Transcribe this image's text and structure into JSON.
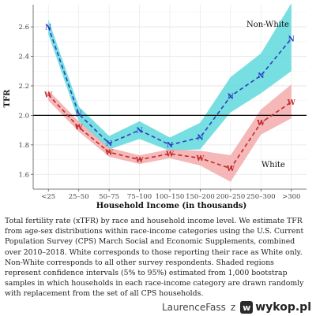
{
  "chart_data": {
    "type": "line",
    "xlabel": "Household Income (in thousands)",
    "ylabel": "TFR",
    "categories": [
      "<25",
      "25–50",
      "50–75",
      "75–100",
      "100–150",
      "150–200",
      "200–250",
      "250–300",
      ">300"
    ],
    "ylim": [
      1.5,
      2.75
    ],
    "yticks": [
      1.6,
      1.8,
      2.0,
      2.2,
      2.4,
      2.6
    ],
    "ytick_labels": [
      "1.6",
      "1.8",
      "2.0",
      "2.2",
      "2.4",
      "2.6"
    ],
    "reference_line": 2.0,
    "grid": true,
    "series": [
      {
        "name": "Non-White",
        "marker": "N",
        "color": "#2b3fbf",
        "band_color": "#5fd9dc",
        "values": [
          2.6,
          2.01,
          1.81,
          1.9,
          1.8,
          1.85,
          2.13,
          2.27,
          2.52
        ],
        "lower": [
          2.55,
          1.96,
          1.77,
          1.84,
          1.76,
          1.77,
          2.02,
          2.15,
          2.3
        ],
        "upper": [
          2.65,
          2.06,
          1.86,
          1.96,
          1.85,
          1.95,
          2.26,
          2.42,
          2.76
        ]
      },
      {
        "name": "White",
        "marker": "W",
        "color": "#c0292b",
        "band_color": "#f2a5a5",
        "values": [
          2.14,
          1.92,
          1.75,
          1.7,
          1.74,
          1.71,
          1.64,
          1.95,
          2.09
        ],
        "lower": [
          2.1,
          1.89,
          1.72,
          1.67,
          1.71,
          1.66,
          1.55,
          1.87,
          1.98
        ],
        "upper": [
          2.17,
          1.96,
          1.78,
          1.73,
          1.77,
          1.76,
          1.73,
          2.04,
          2.21
        ]
      }
    ]
  },
  "caption": "Total fertility rate (xTFR) by race and household income level. We estimate TFR from age-sex distributions within race-income categories using the U.S. Current Population Survey (CPS) March Social and Economic Supplements, combined over 2010–2018. White corresponds to those reporting their race as White only. Non-White corresponds to all other survey respondents. Shaded regions represent confidence intervals (5% to 95%) estimated from 1,000 bootstrap samples in which households in each race-income category are drawn randomly with replacement from the set of all CPS households.",
  "watermark": {
    "user": "LaurenceFass",
    "separator": "z",
    "badge": "w",
    "site": "wykop.pl"
  }
}
